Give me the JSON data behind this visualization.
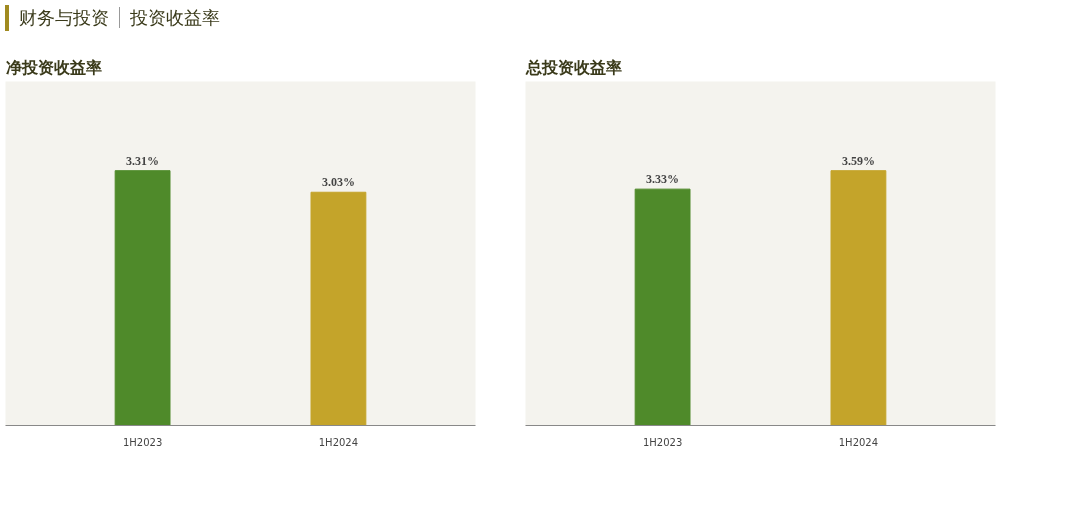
{
  "chart_data": [
    {
      "type": "bar",
      "title": "净投资收益率",
      "annotations": [
        "财务与投资",
        "投资收益率"
      ],
      "categories": [
        "1H2023",
        "1H2024"
      ],
      "values": [
        3.31,
        3.03
      ],
      "colors": [
        "#4f8a2a",
        "#c4a42a"
      ],
      "value_labels": [
        "3.31%",
        "3.03%"
      ],
      "grid": false
    },
    {
      "type": "bar",
      "title": "总投资收益率",
      "categories": [
        "1H2023",
        "1H2024"
      ],
      "values": [
        3.33,
        3.59
      ],
      "colors": [
        "#4f8a2a",
        "#c4a42a"
      ],
      "value_labels": [
        "3.33%",
        "3.59%"
      ],
      "grid": false
    }
  ]
}
